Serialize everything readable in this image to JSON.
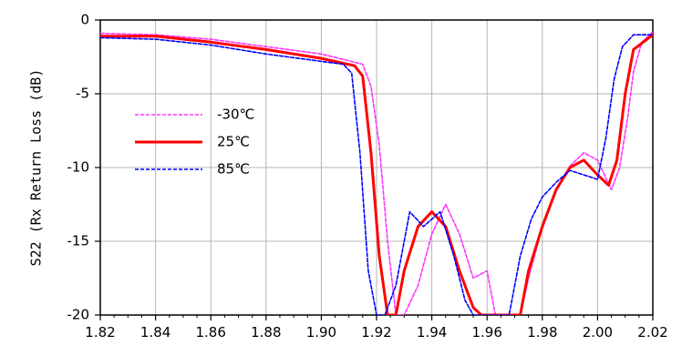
{
  "chart_data": {
    "type": "line",
    "ylabel": "S22 (Rx Return Loss (dB)",
    "xlabel": "",
    "xlim": [
      1.82,
      2.02
    ],
    "ylim": [
      -20,
      0
    ],
    "x_ticks": [
      "1.82",
      "1.84",
      "1.86",
      "1.88",
      "1.90",
      "1.92",
      "1.94",
      "1.96",
      "1.98",
      "2.00",
      "2.02"
    ],
    "y_ticks": [
      "0",
      "-5",
      "-10",
      "-15",
      "-20"
    ],
    "grid": true,
    "legend_position": "center-left",
    "series": [
      {
        "name": "-30℃",
        "color": "#ff33ff",
        "style": "dotted",
        "x": [
          1.82,
          1.84,
          1.86,
          1.88,
          1.9,
          1.915,
          1.918,
          1.921,
          1.924,
          1.927,
          1.93,
          1.935,
          1.94,
          1.945,
          1.95,
          1.955,
          1.96,
          1.963,
          1.972,
          1.975,
          1.98,
          1.985,
          1.99,
          1.995,
          2.0,
          2.005,
          2.008,
          2.011,
          2.013,
          2.016,
          2.02
        ],
        "y": [
          -0.9,
          -1.0,
          -1.3,
          -1.8,
          -2.3,
          -3.0,
          -4.5,
          -8.5,
          -15.0,
          -20.0,
          -20.0,
          -18.0,
          -14.5,
          -12.5,
          -14.5,
          -17.5,
          -17.0,
          -20.0,
          -20.0,
          -17.5,
          -14.0,
          -11.5,
          -9.9,
          -9.0,
          -9.5,
          -11.5,
          -10.0,
          -6.5,
          -3.5,
          -1.5,
          -0.8
        ]
      },
      {
        "name": "25℃",
        "color": "#ff0000",
        "style": "solid",
        "x": [
          1.82,
          1.84,
          1.86,
          1.88,
          1.9,
          1.912,
          1.915,
          1.918,
          1.921,
          1.924,
          1.927,
          1.93,
          1.935,
          1.94,
          1.945,
          1.95,
          1.955,
          1.958,
          1.972,
          1.975,
          1.98,
          1.985,
          1.99,
          1.995,
          2.0,
          2.004,
          2.007,
          2.01,
          2.013,
          2.02
        ],
        "y": [
          -1.1,
          -1.1,
          -1.5,
          -2.0,
          -2.6,
          -3.1,
          -3.8,
          -9.0,
          -16.0,
          -20.0,
          -20.0,
          -17.0,
          -14.0,
          -13.0,
          -14.0,
          -17.0,
          -19.5,
          -20.0,
          -20.0,
          -17.0,
          -14.0,
          -11.5,
          -10.0,
          -9.5,
          -10.5,
          -11.2,
          -9.5,
          -5.0,
          -2.0,
          -1.0
        ]
      },
      {
        "name": "85℃",
        "color": "#0000ff",
        "style": "dotted",
        "x": [
          1.82,
          1.84,
          1.86,
          1.88,
          1.9,
          1.908,
          1.911,
          1.914,
          1.917,
          1.92,
          1.923,
          1.927,
          1.932,
          1.937,
          1.943,
          1.948,
          1.952,
          1.955,
          1.968,
          1.972,
          1.976,
          1.98,
          1.985,
          1.99,
          1.995,
          2.0,
          2.003,
          2.006,
          2.009,
          2.013,
          2.02
        ],
        "y": [
          -1.2,
          -1.3,
          -1.7,
          -2.3,
          -2.8,
          -3.0,
          -3.6,
          -9.0,
          -17.0,
          -20.0,
          -20.0,
          -18.0,
          -13.0,
          -14.0,
          -13.0,
          -16.0,
          -19.0,
          -20.0,
          -20.0,
          -16.0,
          -13.5,
          -12.0,
          -11.0,
          -10.2,
          -10.5,
          -10.8,
          -8.0,
          -4.0,
          -1.8,
          -1.0,
          -1.0
        ]
      }
    ]
  }
}
